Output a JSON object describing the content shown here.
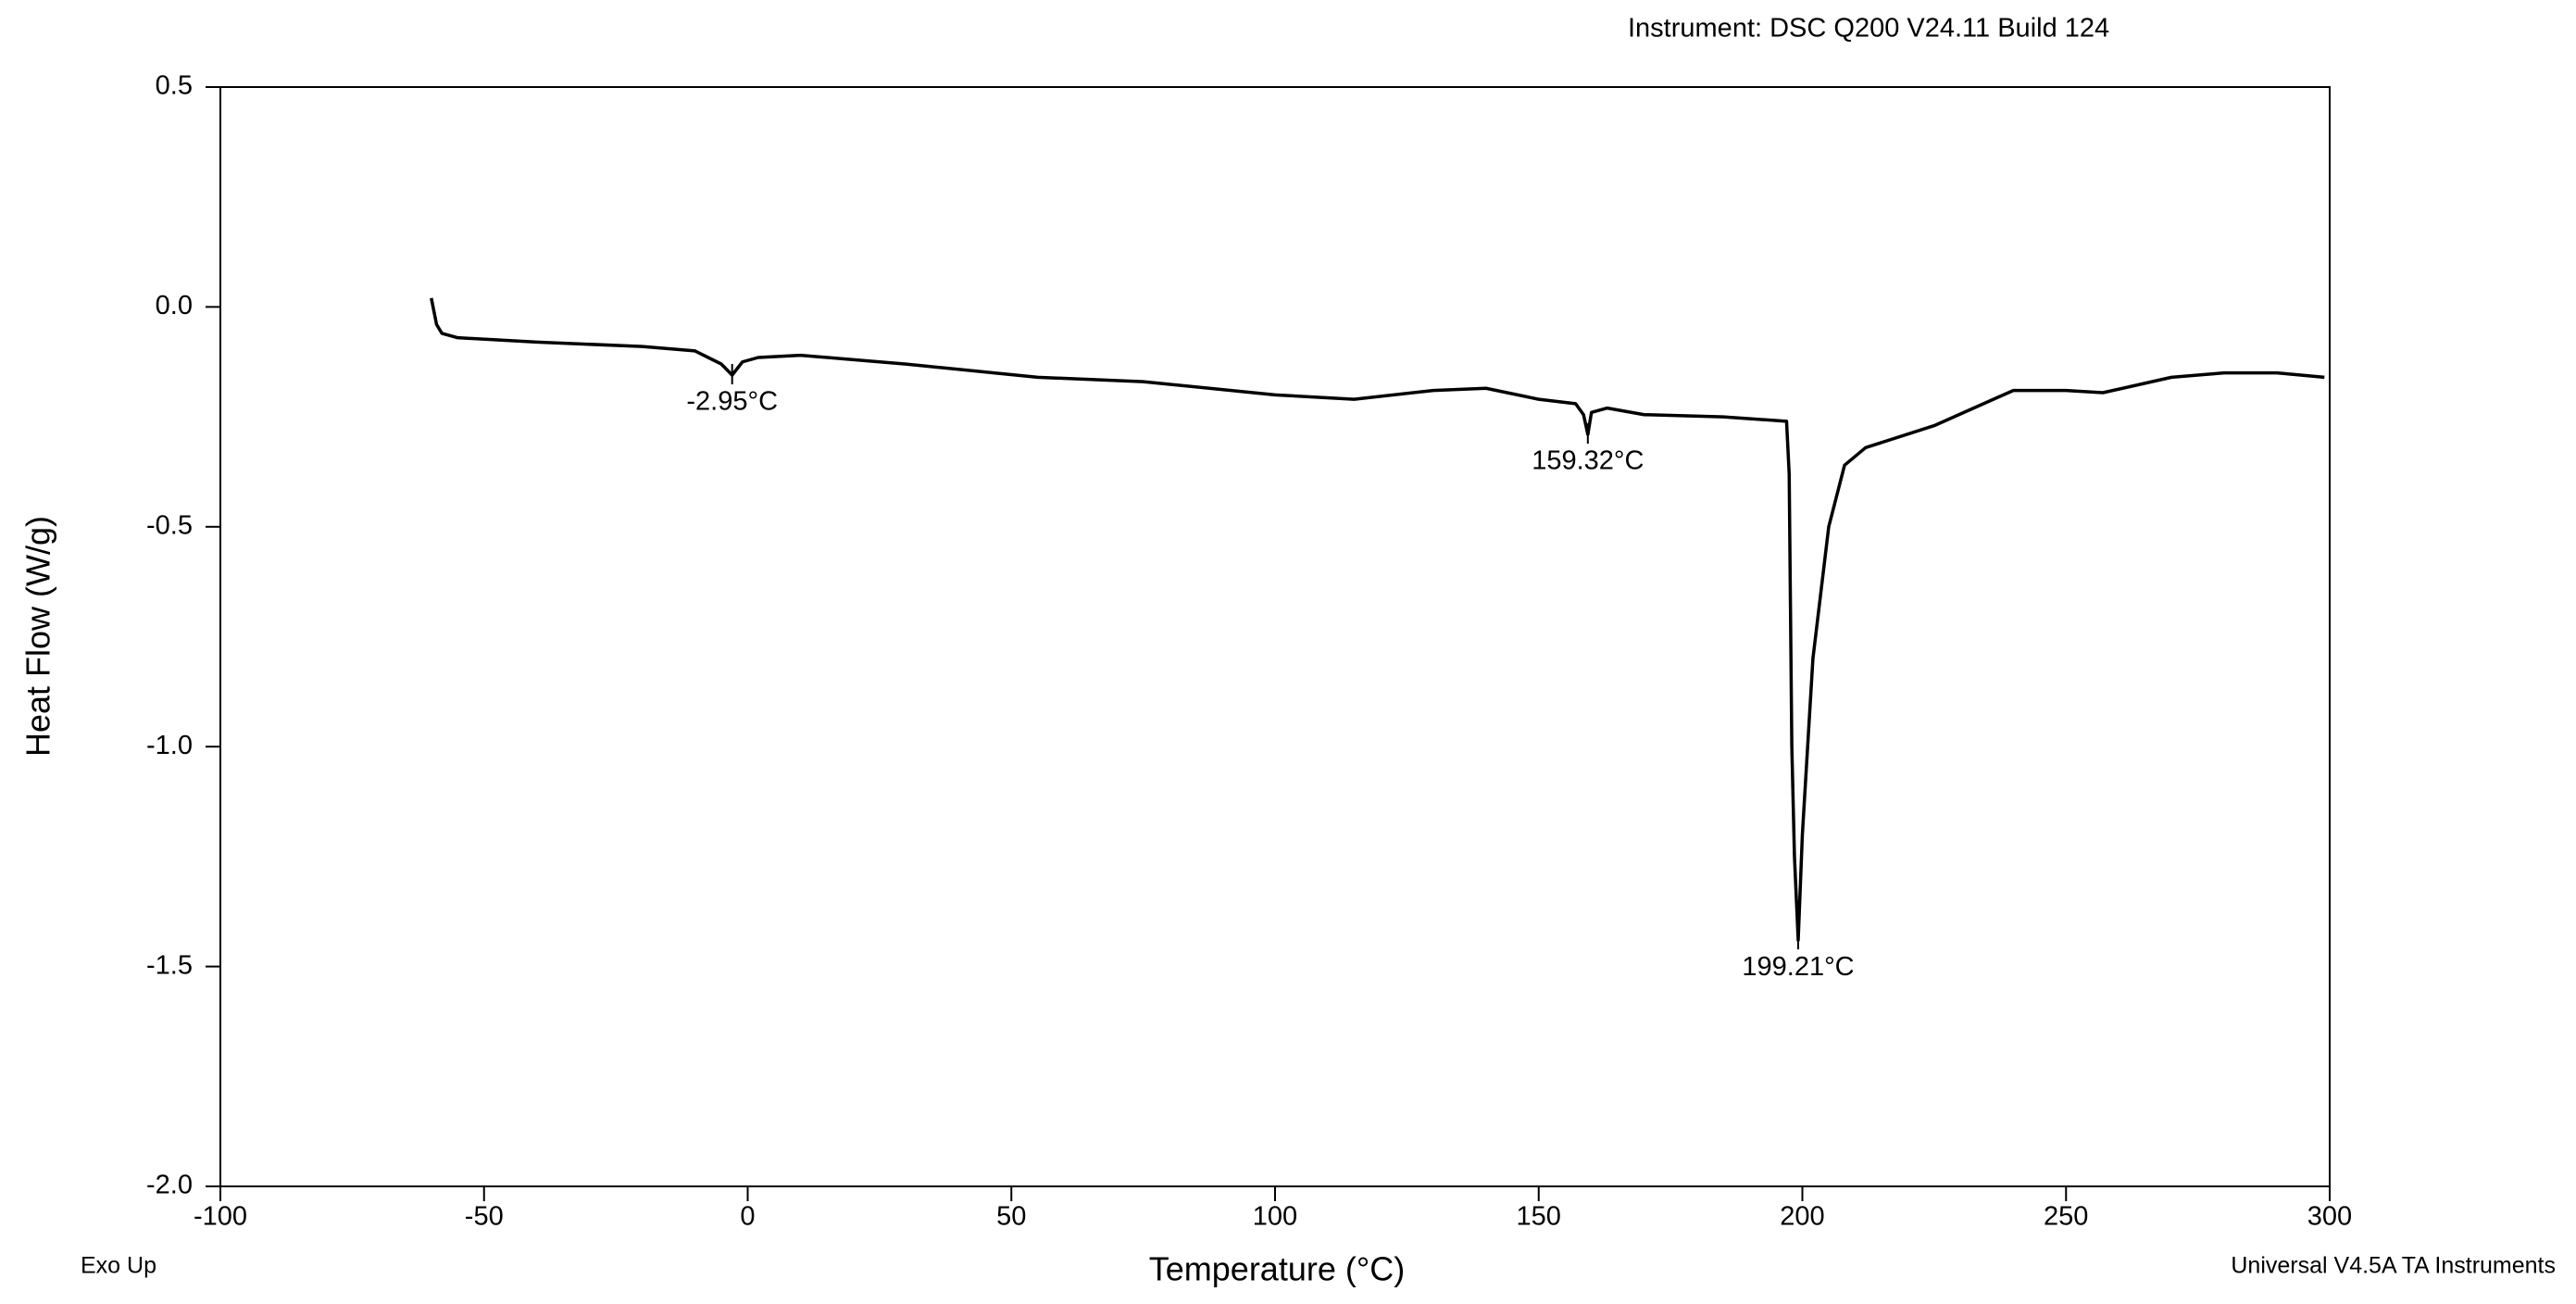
{
  "chart_data": {
    "type": "line",
    "instrument": "Instrument: DSC Q200 V24.11 Build 124",
    "xlabel": "Temperature (°C)",
    "ylabel": "Heat Flow (W/g)",
    "note_left": "Exo Up",
    "note_right": "Universal V4.5A TA Instruments",
    "xlim": [
      -100,
      300
    ],
    "xticks": [
      -100,
      -50,
      0,
      50,
      100,
      150,
      200,
      250,
      300
    ],
    "ylim": [
      -2.0,
      0.5
    ],
    "yticks": [
      {
        "value": -2.0,
        "label": "-2.0"
      },
      -1.5,
      {
        "value": -1.0,
        "label": "-1.0"
      },
      -0.5,
      {
        "value": 0.0,
        "label": "0.0"
      },
      0.5
    ],
    "series": [
      {
        "color": "#000000",
        "x": [
          -60,
          -59.5,
          -59,
          -58,
          -55,
          -40,
          -20,
          -10,
          -5,
          -2.95,
          -1,
          2,
          10,
          30,
          55,
          75,
          100,
          115,
          130,
          140,
          150,
          157,
          158.5,
          159.32,
          160,
          163,
          170,
          185,
          197,
          197.5,
          198,
          198.5,
          199.21,
          200,
          202,
          205,
          208,
          212,
          225,
          240,
          250,
          257,
          270,
          280,
          290,
          299
        ],
        "values": [
          0.02,
          -0.01,
          -0.04,
          -0.06,
          -0.07,
          -0.08,
          -0.09,
          -0.1,
          -0.13,
          -0.155,
          -0.125,
          -0.115,
          -0.11,
          -0.13,
          -0.16,
          -0.17,
          -0.2,
          -0.21,
          -0.19,
          -0.185,
          -0.21,
          -0.22,
          -0.245,
          -0.29,
          -0.24,
          -0.23,
          -0.245,
          -0.25,
          -0.26,
          -0.38,
          -1.0,
          -1.25,
          -1.44,
          -1.2,
          -0.8,
          -0.5,
          -0.36,
          -0.32,
          -0.27,
          -0.19,
          -0.19,
          -0.195,
          -0.16,
          -0.15,
          -0.15,
          -0.16
        ]
      }
    ],
    "peaks": [
      {
        "x": -2.95,
        "y": -0.155,
        "label": "-2.95°C"
      },
      {
        "x": 159.32,
        "y": -0.29,
        "label": "159.32°C"
      },
      {
        "x": 199.21,
        "y": -1.44,
        "label": "199.21°C"
      }
    ]
  }
}
